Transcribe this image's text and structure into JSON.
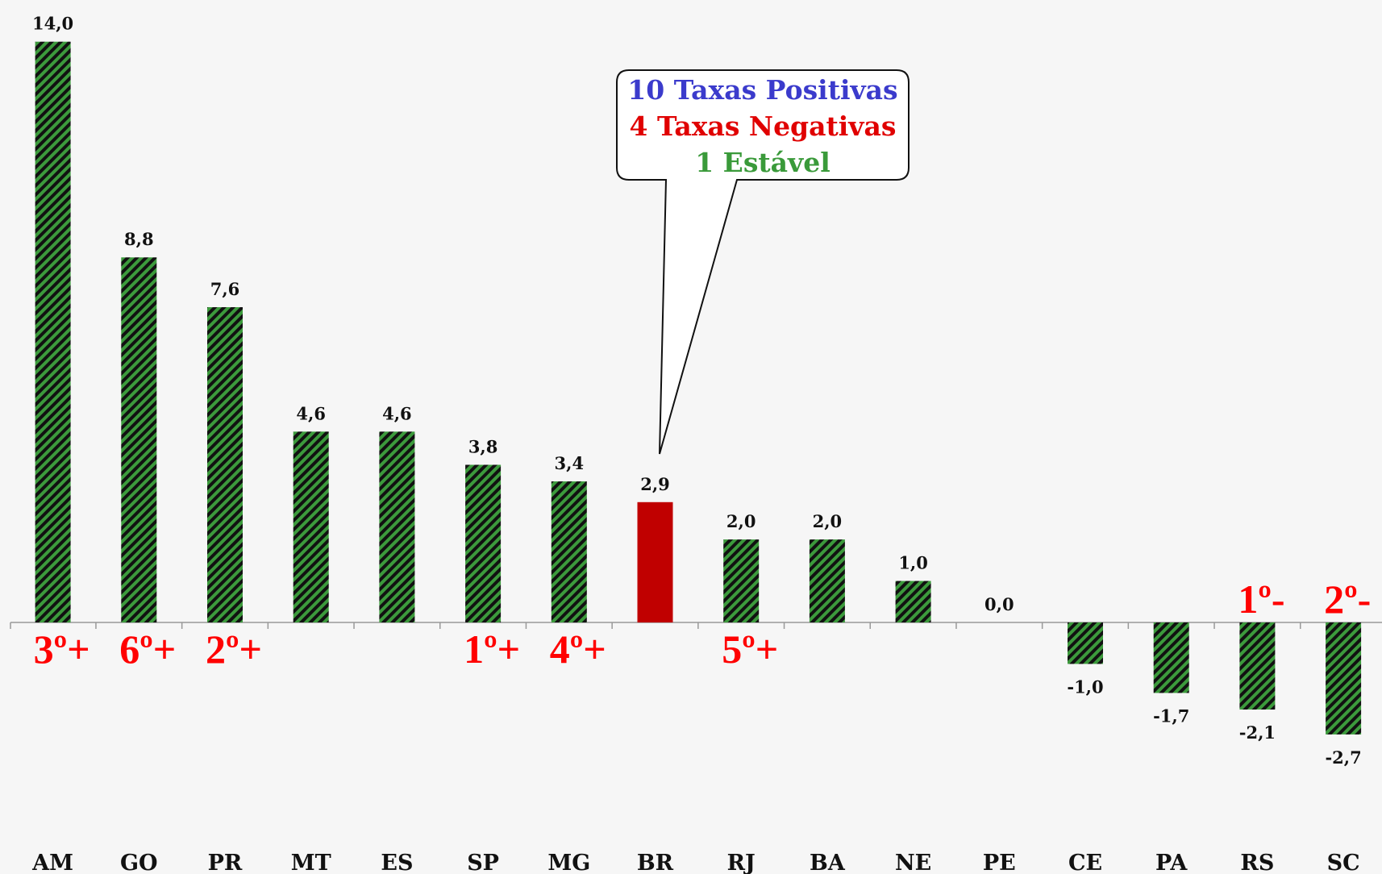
{
  "chart_data": {
    "type": "bar",
    "categories": [
      "AM",
      "GO",
      "PR",
      "MT",
      "ES",
      "SP",
      "MG",
      "BR",
      "RJ",
      "BA",
      "NE",
      "PE",
      "CE",
      "PA",
      "RS",
      "SC"
    ],
    "values": [
      14.0,
      8.8,
      7.6,
      4.6,
      4.6,
      3.8,
      3.4,
      2.9,
      2.0,
      2.0,
      1.0,
      0.0,
      -1.0,
      -1.7,
      -2.1,
      -2.7
    ],
    "value_labels": [
      "14,0",
      "8,8",
      "7,6",
      "4,6",
      "4,6",
      "3,8",
      "3,4",
      "2,9",
      "2,0",
      "2,0",
      "1,0",
      "0,0",
      "-1,0",
      "-1,7",
      "-2,1",
      "-2,7"
    ],
    "colors": [
      "#3c9a3c",
      "#3c9a3c",
      "#3c9a3c",
      "#3c9a3c",
      "#3c9a3c",
      "#3c9a3c",
      "#3c9a3c",
      "#c00000",
      "#3c9a3c",
      "#3c9a3c",
      "#3c9a3c",
      "#3c9a3c",
      "#3c9a3c",
      "#3c9a3c",
      "#3c9a3c",
      "#3c9a3c"
    ],
    "hatched": [
      true,
      true,
      true,
      true,
      true,
      true,
      true,
      false,
      true,
      true,
      true,
      true,
      true,
      true,
      true,
      true
    ],
    "rank_labels": [
      "3º+",
      "6º+",
      "2º+",
      null,
      null,
      "1º+",
      "4º+",
      null,
      "5º+",
      null,
      null,
      null,
      null,
      null,
      "1º-",
      "2º-"
    ],
    "callout": [
      {
        "text": "10 Taxas Positivas",
        "color": "#3b3bcc"
      },
      {
        "text": "4 Taxas Negativas",
        "color": "#e00000"
      },
      {
        "text": "1 Estável",
        "color": "#3a9a3a"
      }
    ]
  }
}
